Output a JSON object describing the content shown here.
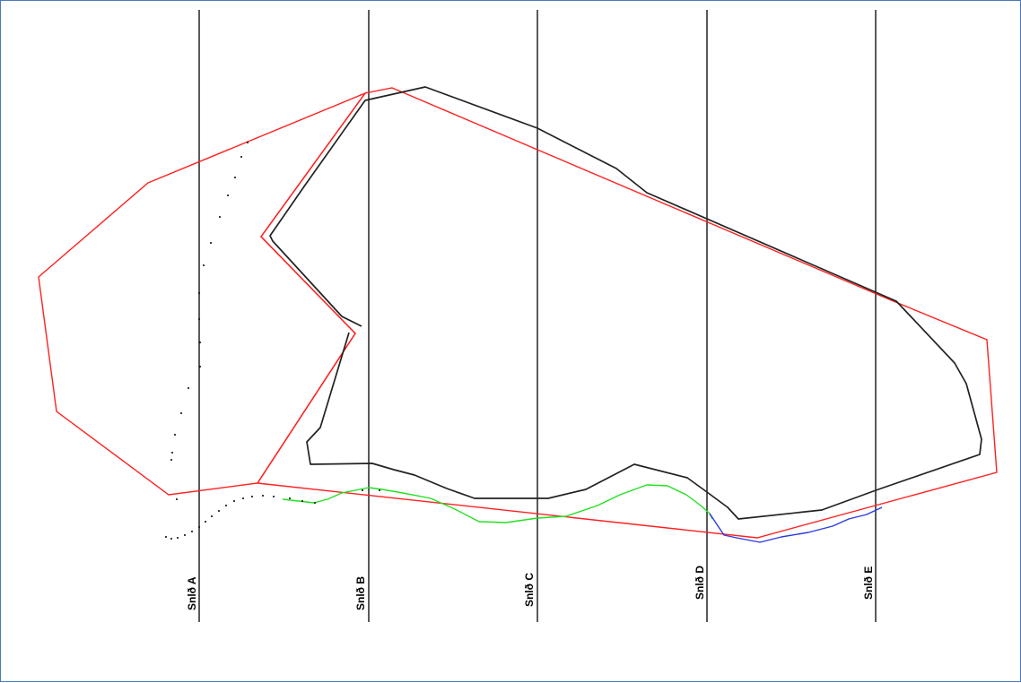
{
  "sections": [
    {
      "label": "Snlð A"
    },
    {
      "label": "Snlð B"
    },
    {
      "label": "Snlð C"
    },
    {
      "label": "Snlð D"
    },
    {
      "label": "Snlð E"
    }
  ],
  "colors": {
    "frame": "#4a7ab8",
    "section_lines": "#000000",
    "black_outline": "#222222",
    "red_outline": "#ff2020",
    "green_line": "#22e022",
    "blue_line": "#2a3ae0",
    "dots": "#000000"
  }
}
